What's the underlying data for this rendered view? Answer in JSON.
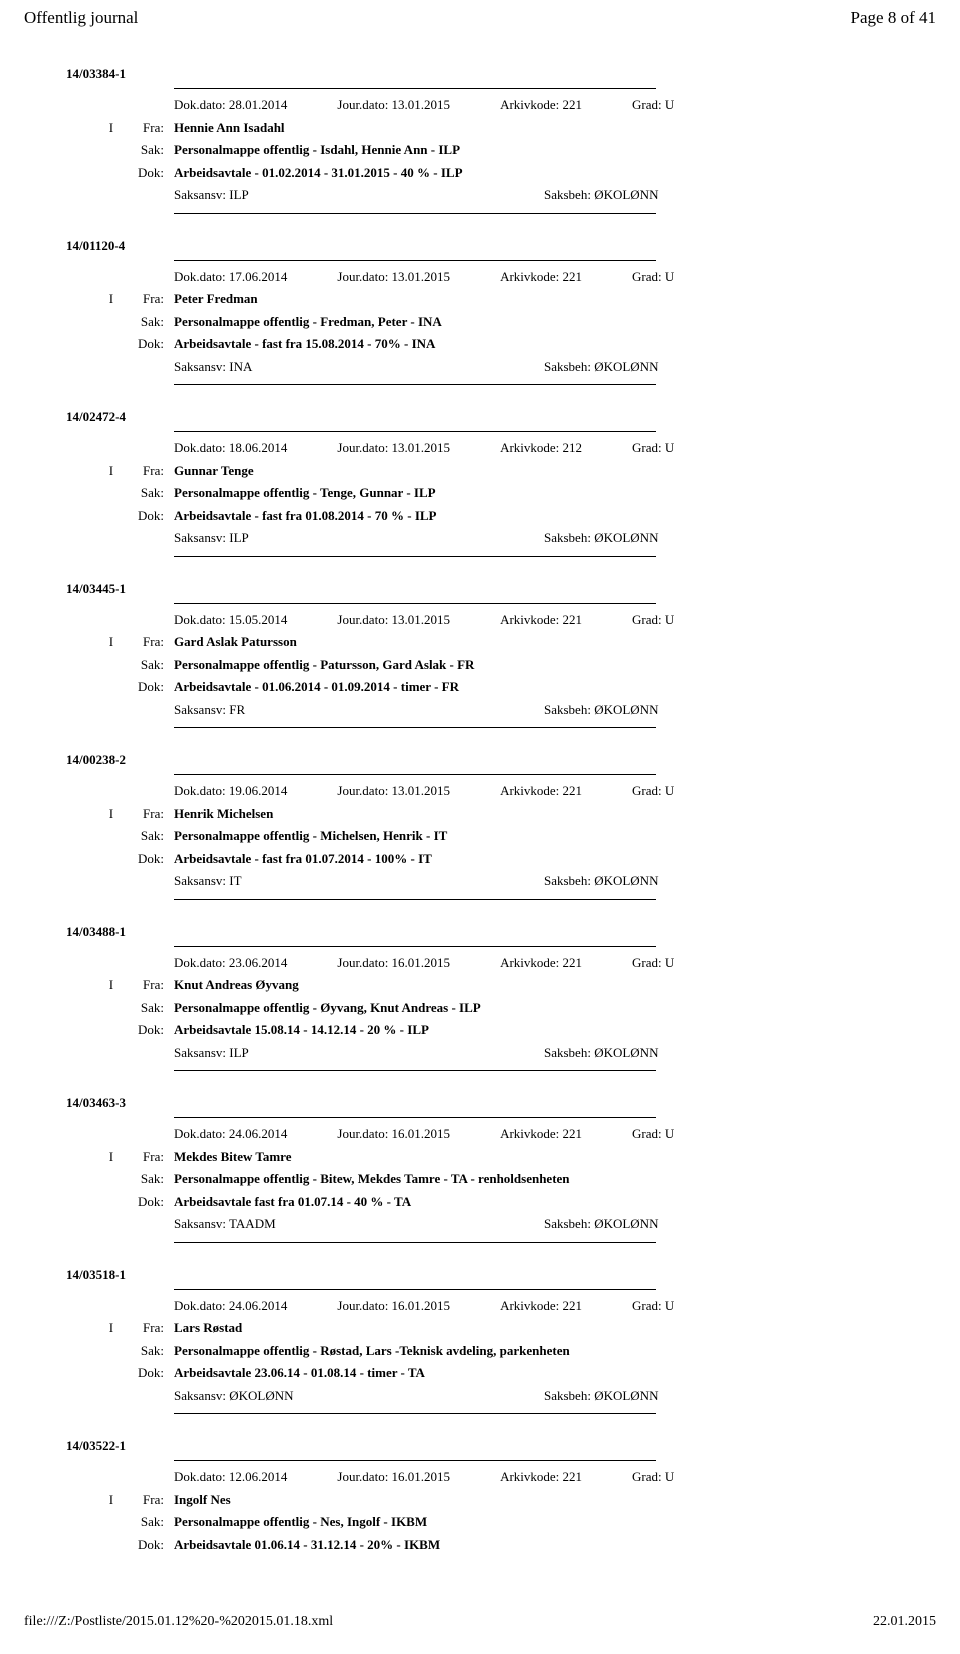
{
  "header": {
    "title": "Offentlig journal",
    "page": "Page 8 of 41"
  },
  "labels": {
    "fra": "Fra:",
    "sak": "Sak:",
    "dok": "Dok:",
    "dokdato": "Dok.dato:",
    "jourdato": "Jour.dato:",
    "arkivkode": "Arkivkode:",
    "grad": "Grad:",
    "saksansv": "Saksansv:",
    "saksbeh": "Saksbeh:"
  },
  "entries": [
    {
      "case": "14/03384-1",
      "dokdato": "28.01.2014",
      "jourdato": "13.01.2015",
      "arkivkode": "221",
      "grad": "U",
      "prefix": "I",
      "fra": "Hennie Ann Isadahl",
      "sak": "Personalmappe offentlig - Isdahl, Hennie Ann - ILP",
      "dok": "Arbeidsavtale - 01.02.2014 - 31.01.2015 - 40 % - ILP",
      "saksansv": "ILP",
      "saksbeh": "ØKOLØNN"
    },
    {
      "case": "14/01120-4",
      "dokdato": "17.06.2014",
      "jourdato": "13.01.2015",
      "arkivkode": "221",
      "grad": "U",
      "prefix": "I",
      "fra": "Peter Fredman",
      "sak": "Personalmappe offentlig - Fredman, Peter - INA",
      "dok": "Arbeidsavtale - fast fra 15.08.2014 - 70% - INA",
      "saksansv": "INA",
      "saksbeh": "ØKOLØNN"
    },
    {
      "case": "14/02472-4",
      "dokdato": "18.06.2014",
      "jourdato": "13.01.2015",
      "arkivkode": "212",
      "grad": "U",
      "prefix": "I",
      "fra": "Gunnar Tenge",
      "sak": "Personalmappe offentlig - Tenge, Gunnar - ILP",
      "dok": "Arbeidsavtale - fast fra 01.08.2014 - 70 % - ILP",
      "saksansv": "ILP",
      "saksbeh": "ØKOLØNN"
    },
    {
      "case": "14/03445-1",
      "dokdato": "15.05.2014",
      "jourdato": "13.01.2015",
      "arkivkode": "221",
      "grad": "U",
      "prefix": "I",
      "fra": "Gard Aslak Patursson",
      "sak": "Personalmappe offentlig - Patursson, Gard Aslak - FR",
      "dok": "Arbeidsavtale - 01.06.2014 - 01.09.2014 - timer - FR",
      "saksansv": "FR",
      "saksbeh": "ØKOLØNN"
    },
    {
      "case": "14/00238-2",
      "dokdato": "19.06.2014",
      "jourdato": "13.01.2015",
      "arkivkode": "221",
      "grad": "U",
      "prefix": "I",
      "fra": "Henrik Michelsen",
      "sak": "Personalmappe offentlig - Michelsen, Henrik - IT",
      "dok": "Arbeidsavtale - fast fra 01.07.2014 - 100% - IT",
      "saksansv": "IT",
      "saksbeh": "ØKOLØNN"
    },
    {
      "case": "14/03488-1",
      "dokdato": "23.06.2014",
      "jourdato": "16.01.2015",
      "arkivkode": "221",
      "grad": "U",
      "prefix": "I",
      "fra": "Knut Andreas Øyvang",
      "sak": "Personalmappe offentlig - Øyvang, Knut Andreas - ILP",
      "dok": "Arbeidsavtale 15.08.14 - 14.12.14 - 20 % - ILP",
      "saksansv": "ILP",
      "saksbeh": "ØKOLØNN"
    },
    {
      "case": "14/03463-3",
      "dokdato": "24.06.2014",
      "jourdato": "16.01.2015",
      "arkivkode": "221",
      "grad": "U",
      "prefix": "I",
      "fra": "Mekdes Bitew Tamre",
      "sak": "Personalmappe offentlig - Bitew, Mekdes Tamre - TA - renholdsenheten",
      "dok": "Arbeidsavtale fast fra 01.07.14 - 40 % - TA",
      "saksansv": "TAADM",
      "saksbeh": "ØKOLØNN"
    },
    {
      "case": "14/03518-1",
      "dokdato": "24.06.2014",
      "jourdato": "16.01.2015",
      "arkivkode": "221",
      "grad": "U",
      "prefix": "I",
      "fra": "Lars Røstad",
      "sak": "Personalmappe offentlig - Røstad, Lars -Teknisk avdeling, parkenheten",
      "dok": "Arbeidsavtale 23.06.14 - 01.08.14 - timer - TA",
      "saksansv": "ØKOLØNN",
      "saksbeh": "ØKOLØNN"
    },
    {
      "case": "14/03522-1",
      "dokdato": "12.06.2014",
      "jourdato": "16.01.2015",
      "arkivkode": "221",
      "grad": "U",
      "prefix": "I",
      "fra": "Ingolf Nes",
      "sak": "Personalmappe offentlig - Nes, Ingolf - IKBM",
      "dok": "Arbeidsavtale 01.06.14 - 31.12.14 - 20% - IKBM",
      "saksansv": "",
      "saksbeh": ""
    }
  ],
  "footer": {
    "path": "file:///Z:/Postliste/2015.01.12%20-%202015.01.18.xml",
    "date": "22.01.2015"
  }
}
